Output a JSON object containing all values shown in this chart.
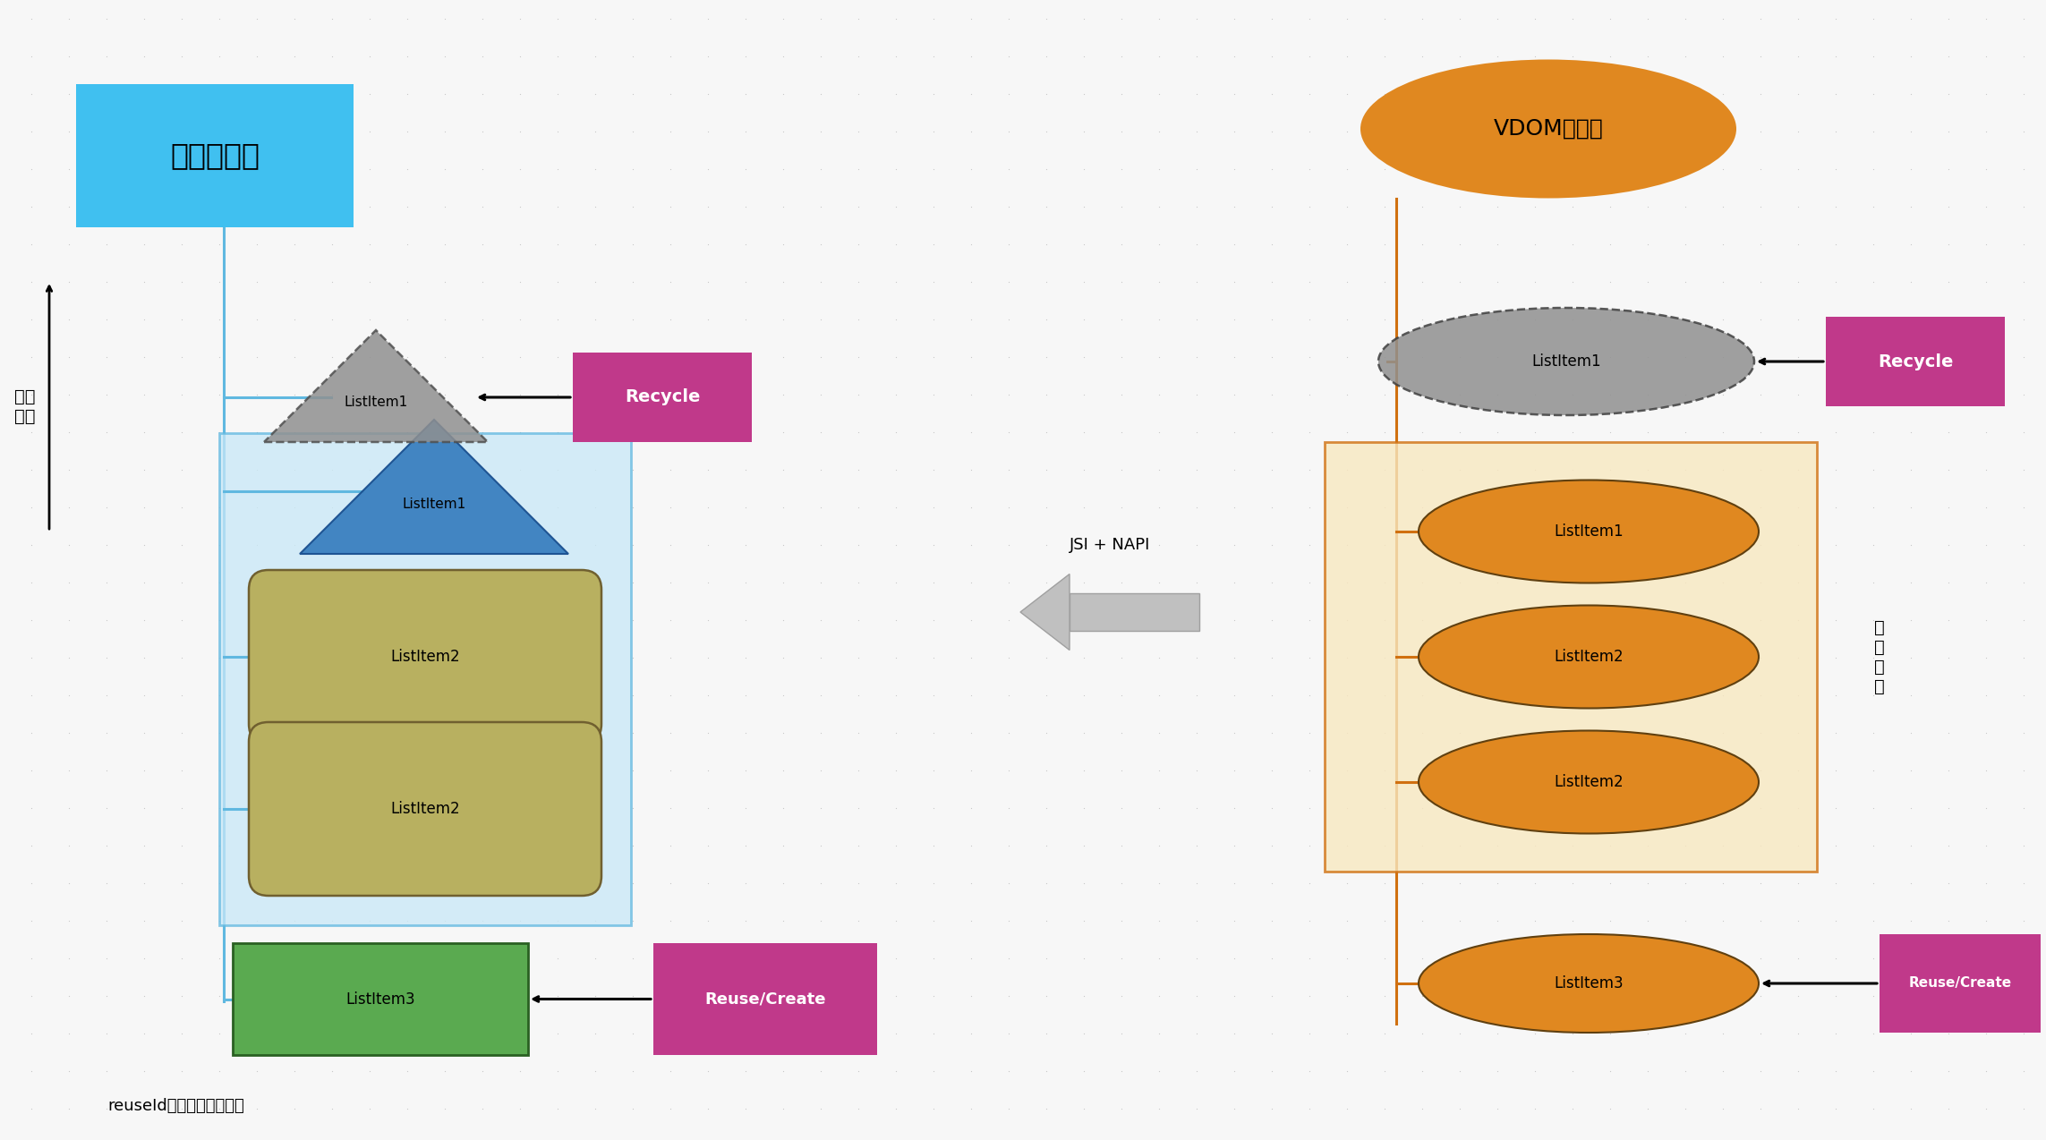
{
  "bg_color": "#f7f7f7",
  "dot_color": "#c8c8c8",
  "title_left": "原生组件树",
  "title_right": "VDOM节点树",
  "label_scroll": "向上\n滑动",
  "label_jsi": "JSI + NAPI",
  "label_cache": "缓\n存\n区\n域",
  "label_reuse": "reuseId根据复用类型区分",
  "recycle_color": "#c0398a",
  "left_bg_color": "#c8e8f8",
  "right_cache_color": "#f8e8c0",
  "orange_color": "#e08820",
  "green_color": "#5aaa50",
  "olive_color": "#b8b060",
  "blue_triangle_color": "#3a80c0",
  "gray_color": "#909090",
  "left_title_bg": "#40c0f0",
  "recycle_label": "Recycle",
  "reuse_label": "Reuse/Create",
  "line_blue": "#60b8e0",
  "line_orange": "#d07010"
}
